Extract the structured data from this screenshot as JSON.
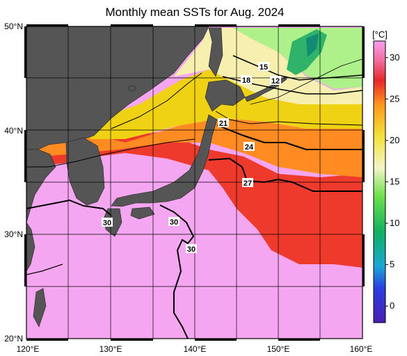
{
  "title": "Monthly mean SSTs for Aug. 2024",
  "map": {
    "lon_range": [
      120,
      160
    ],
    "lat_range": [
      20,
      50
    ],
    "lon_ticks": [
      "120°E",
      "130°E",
      "140°E",
      "150°E",
      "160°E"
    ],
    "lat_ticks": [
      "50°N",
      "40°N",
      "30°N",
      "20°N"
    ]
  },
  "contour_labels": [
    "15",
    "18",
    "12",
    "21",
    "24",
    "27",
    "30",
    "30",
    "30"
  ],
  "colorbar": {
    "unit": "[°C]",
    "ticks": [
      "30",
      "25",
      "20",
      "15",
      "10",
      "5",
      "0"
    ],
    "range": [
      -2,
      32
    ]
  },
  "colors": {
    "land": "#555555",
    "sst_30": "#f4a6f0",
    "sst_27": "#ee3a2c",
    "sst_24": "#ff8b22",
    "sst_21": "#f0d215",
    "sst_18": "#f6efb0",
    "sst_15": "#aef08a",
    "sst_12": "#2fb36a"
  }
}
